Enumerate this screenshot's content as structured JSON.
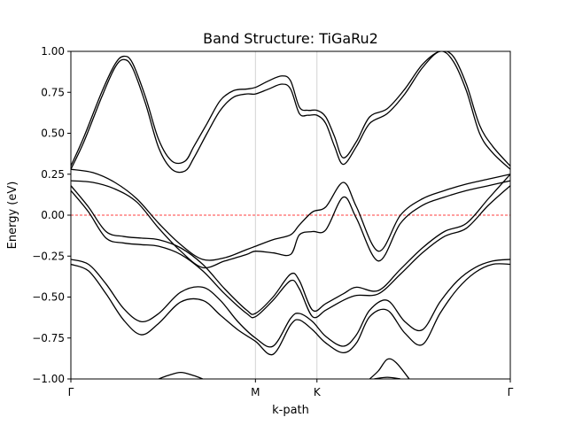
{
  "chart_data": {
    "type": "line",
    "title": "Band Structure: TiGaRu2",
    "xlabel": "k-path",
    "ylabel": "Energy (eV)",
    "xlim": [
      0,
      1
    ],
    "ylim": [
      -1.0,
      1.0
    ],
    "yticks": [
      -1.0,
      -0.75,
      -0.5,
      -0.25,
      0.0,
      0.25,
      0.5,
      0.75,
      1.0
    ],
    "ytick_labels": [
      "−1.00",
      "−0.75",
      "−0.50",
      "−0.25",
      "0.00",
      "0.25",
      "0.50",
      "0.75",
      "1.00"
    ],
    "high_symmetry_points": [
      {
        "label": "Γ",
        "x": 0.0
      },
      {
        "label": "M",
        "x": 0.42
      },
      {
        "label": "K",
        "x": 0.56
      },
      {
        "label": "Γ",
        "x": 1.0
      }
    ],
    "fermi_level": 0.0,
    "fermi_color": "#ff0000",
    "line_color": "#000000",
    "vline_color": "#d3d3d3",
    "grid": false,
    "series": [
      {
        "x": [
          0,
          0.03,
          0.07,
          0.1,
          0.12,
          0.14,
          0.17,
          0.2,
          0.23,
          0.26,
          0.28,
          0.31,
          0.34,
          0.37,
          0.4,
          0.42,
          0.45,
          0.48,
          0.5,
          0.52,
          0.54,
          0.56,
          0.58,
          0.6,
          0.62,
          0.65,
          0.68,
          0.72,
          0.76,
          0.8,
          0.84,
          0.87,
          0.9,
          0.93,
          0.96,
          1.0
        ],
        "y": [
          0.3,
          0.48,
          0.75,
          0.92,
          0.97,
          0.93,
          0.72,
          0.46,
          0.33,
          0.33,
          0.42,
          0.56,
          0.7,
          0.76,
          0.77,
          0.78,
          0.82,
          0.85,
          0.82,
          0.66,
          0.64,
          0.64,
          0.6,
          0.48,
          0.35,
          0.45,
          0.6,
          0.65,
          0.77,
          0.92,
          1.0,
          0.97,
          0.8,
          0.55,
          0.42,
          0.3
        ]
      },
      {
        "x": [
          0,
          0.03,
          0.07,
          0.1,
          0.12,
          0.14,
          0.17,
          0.2,
          0.23,
          0.26,
          0.28,
          0.31,
          0.34,
          0.37,
          0.4,
          0.42,
          0.45,
          0.48,
          0.5,
          0.52,
          0.54,
          0.56,
          0.58,
          0.6,
          0.62,
          0.65,
          0.68,
          0.72,
          0.76,
          0.8,
          0.84,
          0.87,
          0.9,
          0.93,
          0.96,
          1.0
        ],
        "y": [
          0.28,
          0.45,
          0.72,
          0.9,
          0.95,
          0.9,
          0.68,
          0.41,
          0.28,
          0.27,
          0.35,
          0.5,
          0.64,
          0.72,
          0.74,
          0.74,
          0.77,
          0.8,
          0.77,
          0.62,
          0.61,
          0.61,
          0.56,
          0.42,
          0.31,
          0.42,
          0.56,
          0.62,
          0.74,
          0.9,
          1.0,
          0.94,
          0.76,
          0.5,
          0.38,
          0.28
        ]
      },
      {
        "x": [
          0,
          0.05,
          0.1,
          0.15,
          0.2,
          0.25,
          0.3,
          0.35,
          0.4,
          0.42,
          0.46,
          0.5,
          0.52,
          0.55,
          0.58,
          0.62,
          0.65,
          0.7,
          0.75,
          0.8,
          0.85,
          0.9,
          0.95,
          1.0
        ],
        "y": [
          0.28,
          0.26,
          0.2,
          0.1,
          -0.05,
          -0.18,
          -0.27,
          -0.26,
          -0.21,
          -0.19,
          -0.15,
          -0.12,
          -0.06,
          0.02,
          0.05,
          0.2,
          0.05,
          -0.22,
          0.0,
          0.1,
          0.15,
          0.19,
          0.22,
          0.25
        ]
      },
      {
        "x": [
          0,
          0.05,
          0.1,
          0.15,
          0.2,
          0.25,
          0.3,
          0.35,
          0.4,
          0.42,
          0.46,
          0.5,
          0.52,
          0.55,
          0.58,
          0.62,
          0.65,
          0.7,
          0.75,
          0.8,
          0.85,
          0.9,
          0.95,
          1.0
        ],
        "y": [
          0.21,
          0.2,
          0.16,
          0.08,
          -0.08,
          -0.22,
          -0.32,
          -0.28,
          -0.24,
          -0.22,
          -0.23,
          -0.24,
          -0.12,
          -0.1,
          -0.09,
          0.11,
          -0.02,
          -0.28,
          -0.05,
          0.06,
          0.11,
          0.15,
          0.18,
          0.21
        ]
      },
      {
        "x": [
          0,
          0.04,
          0.08,
          0.12,
          0.16,
          0.2,
          0.25,
          0.3,
          0.35,
          0.4,
          0.42,
          0.46,
          0.5,
          0.52,
          0.55,
          0.58,
          0.62,
          0.65,
          0.7,
          0.75,
          0.8,
          0.85,
          0.9,
          0.95,
          1.0
        ],
        "y": [
          0.18,
          0.05,
          -0.1,
          -0.13,
          -0.14,
          -0.15,
          -0.2,
          -0.3,
          -0.45,
          -0.58,
          -0.6,
          -0.5,
          -0.36,
          -0.4,
          -0.58,
          -0.54,
          -0.48,
          -0.44,
          -0.46,
          -0.33,
          -0.2,
          -0.1,
          -0.05,
          0.1,
          0.25
        ]
      },
      {
        "x": [
          0,
          0.04,
          0.08,
          0.12,
          0.16,
          0.2,
          0.25,
          0.3,
          0.35,
          0.4,
          0.42,
          0.46,
          0.5,
          0.52,
          0.55,
          0.58,
          0.62,
          0.65,
          0.7,
          0.75,
          0.8,
          0.85,
          0.9,
          0.95,
          1.0
        ],
        "y": [
          0.15,
          0.02,
          -0.14,
          -0.17,
          -0.18,
          -0.19,
          -0.24,
          -0.34,
          -0.48,
          -0.6,
          -0.62,
          -0.52,
          -0.4,
          -0.45,
          -0.62,
          -0.58,
          -0.52,
          -0.49,
          -0.48,
          -0.36,
          -0.23,
          -0.13,
          -0.08,
          0.06,
          0.18
        ]
      },
      {
        "x": [
          0,
          0.04,
          0.08,
          0.12,
          0.16,
          0.2,
          0.25,
          0.3,
          0.34,
          0.38,
          0.42,
          0.46,
          0.5,
          0.52,
          0.55,
          0.58,
          0.62,
          0.65,
          0.68,
          0.72,
          0.76,
          0.8,
          0.84,
          0.88,
          0.92,
          0.96,
          1.0
        ],
        "y": [
          -0.27,
          -0.3,
          -0.42,
          -0.57,
          -0.65,
          -0.6,
          -0.47,
          -0.44,
          -0.52,
          -0.65,
          -0.75,
          -0.8,
          -0.63,
          -0.6,
          -0.65,
          -0.74,
          -0.8,
          -0.73,
          -0.58,
          -0.52,
          -0.65,
          -0.7,
          -0.53,
          -0.4,
          -0.32,
          -0.28,
          -0.27
        ]
      },
      {
        "x": [
          0,
          0.04,
          0.08,
          0.12,
          0.16,
          0.2,
          0.25,
          0.3,
          0.34,
          0.38,
          0.42,
          0.46,
          0.5,
          0.52,
          0.55,
          0.58,
          0.62,
          0.65,
          0.68,
          0.72,
          0.76,
          0.8,
          0.84,
          0.88,
          0.92,
          0.96,
          1.0
        ],
        "y": [
          -0.3,
          -0.34,
          -0.48,
          -0.64,
          -0.73,
          -0.66,
          -0.53,
          -0.52,
          -0.61,
          -0.7,
          -0.77,
          -0.85,
          -0.67,
          -0.64,
          -0.7,
          -0.78,
          -0.84,
          -0.78,
          -0.62,
          -0.58,
          -0.72,
          -0.79,
          -0.6,
          -0.45,
          -0.35,
          -0.3,
          -0.3
        ]
      },
      {
        "x": [
          0.2,
          0.22,
          0.25,
          0.28,
          0.3
        ],
        "y": [
          -1.0,
          -0.98,
          -0.96,
          -0.98,
          -1.0
        ]
      },
      {
        "x": [
          0.68,
          0.7,
          0.72,
          0.74,
          0.77
        ],
        "y": [
          -1.0,
          -0.95,
          -0.88,
          -0.9,
          -1.0
        ]
      },
      {
        "x": [
          0.69,
          0.72,
          0.75
        ],
        "y": [
          -1.0,
          -0.99,
          -1.0
        ]
      }
    ]
  }
}
